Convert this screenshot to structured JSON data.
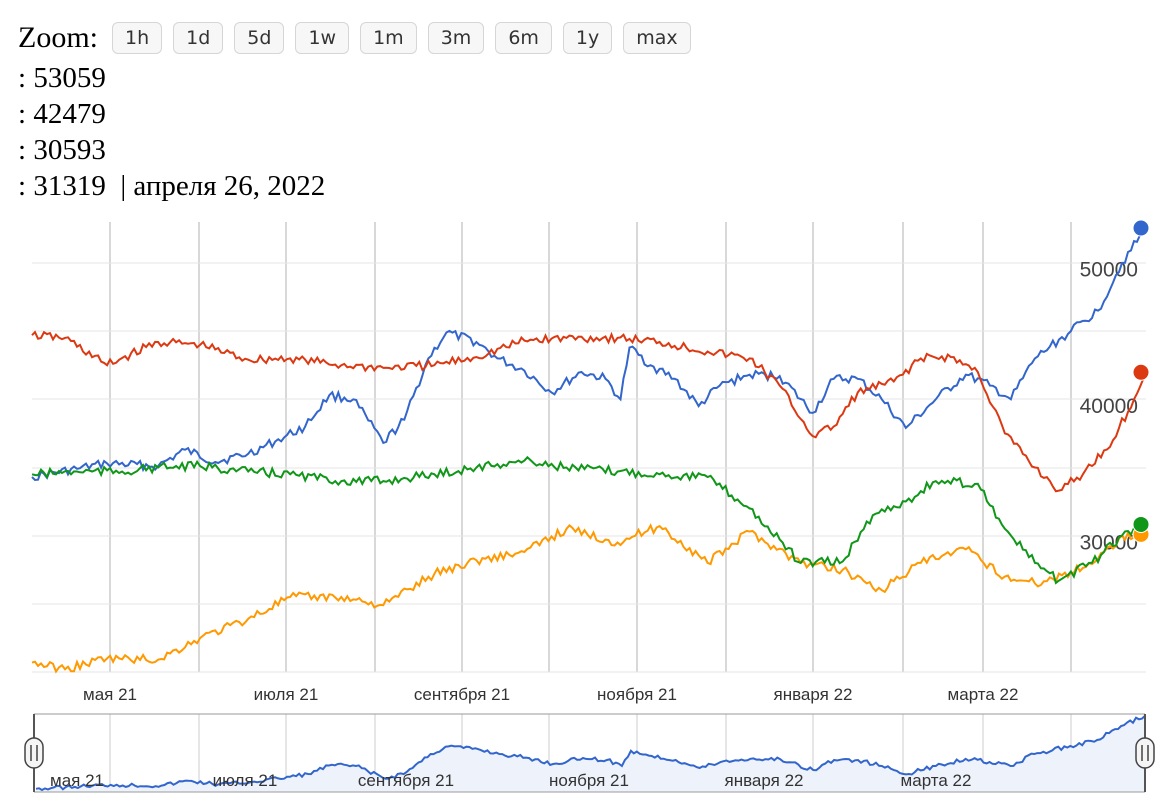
{
  "zoom": {
    "label": "Zoom:",
    "buttons": [
      "1h",
      "1d",
      "5d",
      "1w",
      "1m",
      "3m",
      "6m",
      "1y",
      "max"
    ]
  },
  "readout": {
    "rows": [
      {
        "prefix": ": ",
        "value": "53059",
        "suffix": ""
      },
      {
        "prefix": ": ",
        "value": "42479",
        "suffix": ""
      },
      {
        "prefix": ": ",
        "value": "30593",
        "suffix": ""
      },
      {
        "prefix": ": ",
        "value": "31319",
        "suffix": "  | апреля 26, 2022"
      }
    ]
  },
  "chart_data": {
    "type": "line",
    "x_tick_labels": [
      "мая 21",
      "июля 21",
      "сентября 21",
      "ноября 21",
      "января 22",
      "марта 22"
    ],
    "navigator_tick_labels": [
      "мая 21",
      "июля 21",
      "сентября 21",
      "ноября 21",
      "января 22",
      "марта 22"
    ],
    "y_ticks": [
      30000,
      40000,
      50000
    ],
    "ylim": [
      20500,
      53500
    ],
    "xlim": [
      "2021-04-20",
      "2022-04-26"
    ],
    "grid": true,
    "series": [
      {
        "color": "#3366cc",
        "points": [
          [
            "2021-04-20",
            34800
          ],
          [
            "2021-05-05",
            35400
          ],
          [
            "2021-05-15",
            35800
          ],
          [
            "2021-06-01",
            35600
          ],
          [
            "2021-06-10",
            36800
          ],
          [
            "2021-06-20",
            35900
          ],
          [
            "2021-07-01",
            36500
          ],
          [
            "2021-07-10",
            37400
          ],
          [
            "2021-07-20",
            38500
          ],
          [
            "2021-07-28",
            40800
          ],
          [
            "2021-08-05",
            40500
          ],
          [
            "2021-08-15",
            37300
          ],
          [
            "2021-08-22",
            39000
          ],
          [
            "2021-08-30",
            43500
          ],
          [
            "2021-09-05",
            45400
          ],
          [
            "2021-09-15",
            44700
          ],
          [
            "2021-09-22",
            43500
          ],
          [
            "2021-10-01",
            42600
          ],
          [
            "2021-10-10",
            41000
          ],
          [
            "2021-10-20",
            42500
          ],
          [
            "2021-10-28",
            42000
          ],
          [
            "2021-11-02",
            40500
          ],
          [
            "2021-11-05",
            44300
          ],
          [
            "2021-11-12",
            43000
          ],
          [
            "2021-11-20",
            42000
          ],
          [
            "2021-11-28",
            40000
          ],
          [
            "2021-12-05",
            41500
          ],
          [
            "2021-12-15",
            42300
          ],
          [
            "2021-12-25",
            42200
          ],
          [
            "2022-01-05",
            39500
          ],
          [
            "2022-01-12",
            42000
          ],
          [
            "2022-01-20",
            42000
          ],
          [
            "2022-01-28",
            40500
          ],
          [
            "2022-02-05",
            38400
          ],
          [
            "2022-02-15",
            40500
          ],
          [
            "2022-02-25",
            42300
          ],
          [
            "2022-03-05",
            41500
          ],
          [
            "2022-03-12",
            40500
          ],
          [
            "2022-03-20",
            43500
          ],
          [
            "2022-04-01",
            45500
          ],
          [
            "2022-04-10",
            47000
          ],
          [
            "2022-04-18",
            50500
          ],
          [
            "2022-04-26",
            53059
          ]
        ]
      },
      {
        "color": "#dc3912",
        "points": [
          [
            "2021-04-20",
            45200
          ],
          [
            "2021-05-01",
            45000
          ],
          [
            "2021-05-15",
            43000
          ],
          [
            "2021-06-01",
            44700
          ],
          [
            "2021-06-15",
            44500
          ],
          [
            "2021-07-01",
            43400
          ],
          [
            "2021-07-15",
            43500
          ],
          [
            "2021-08-01",
            43000
          ],
          [
            "2021-08-15",
            42800
          ],
          [
            "2021-09-01",
            43000
          ],
          [
            "2021-09-15",
            43600
          ],
          [
            "2021-10-01",
            44800
          ],
          [
            "2021-10-15",
            45000
          ],
          [
            "2021-11-01",
            45000
          ],
          [
            "2021-11-15",
            44700
          ],
          [
            "2021-12-01",
            44000
          ],
          [
            "2021-12-15",
            43500
          ],
          [
            "2021-12-25",
            41500
          ],
          [
            "2022-01-05",
            37800
          ],
          [
            "2022-01-12",
            38500
          ],
          [
            "2022-01-20",
            41000
          ],
          [
            "2022-02-01",
            41800
          ],
          [
            "2022-02-10",
            43500
          ],
          [
            "2022-02-20",
            43600
          ],
          [
            "2022-03-01",
            42500
          ],
          [
            "2022-03-10",
            38000
          ],
          [
            "2022-03-20",
            35500
          ],
          [
            "2022-03-28",
            33800
          ],
          [
            "2022-04-05",
            35000
          ],
          [
            "2022-04-15",
            37500
          ],
          [
            "2022-04-22",
            40500
          ],
          [
            "2022-04-26",
            42479
          ]
        ]
      },
      {
        "color": "#ff9900",
        "points": [
          [
            "2021-04-20",
            21200
          ],
          [
            "2021-05-01",
            20700
          ],
          [
            "2021-05-15",
            21500
          ],
          [
            "2021-06-01",
            21400
          ],
          [
            "2021-06-15",
            23000
          ],
          [
            "2021-07-01",
            24400
          ],
          [
            "2021-07-15",
            26000
          ],
          [
            "2021-08-01",
            26000
          ],
          [
            "2021-08-15",
            25400
          ],
          [
            "2021-09-01",
            27700
          ],
          [
            "2021-09-15",
            28700
          ],
          [
            "2021-10-01",
            29300
          ],
          [
            "2021-10-15",
            31000
          ],
          [
            "2021-11-01",
            30000
          ],
          [
            "2021-11-15",
            31200
          ],
          [
            "2021-12-01",
            28500
          ],
          [
            "2021-12-15",
            30800
          ],
          [
            "2022-01-01",
            28500
          ],
          [
            "2022-01-15",
            28000
          ],
          [
            "2022-01-28",
            26500
          ],
          [
            "2022-02-10",
            28500
          ],
          [
            "2022-02-25",
            29500
          ],
          [
            "2022-03-10",
            27500
          ],
          [
            "2022-03-20",
            27000
          ],
          [
            "2022-04-01",
            27800
          ],
          [
            "2022-04-10",
            28800
          ],
          [
            "2022-04-18",
            30500
          ],
          [
            "2022-04-26",
            30593
          ]
        ]
      },
      {
        "color": "#109618",
        "points": [
          [
            "2021-04-20",
            35000
          ],
          [
            "2021-05-05",
            35200
          ],
          [
            "2021-05-20",
            35200
          ],
          [
            "2021-06-01",
            35500
          ],
          [
            "2021-06-15",
            35600
          ],
          [
            "2021-07-01",
            35200
          ],
          [
            "2021-07-15",
            35000
          ],
          [
            "2021-08-01",
            34500
          ],
          [
            "2021-08-15",
            34500
          ],
          [
            "2021-09-01",
            35000
          ],
          [
            "2021-09-15",
            35500
          ],
          [
            "2021-10-01",
            36000
          ],
          [
            "2021-10-15",
            35500
          ],
          [
            "2021-11-01",
            35200
          ],
          [
            "2021-11-15",
            35000
          ],
          [
            "2021-12-01",
            34800
          ],
          [
            "2021-12-15",
            32500
          ],
          [
            "2022-01-01",
            28500
          ],
          [
            "2022-01-15",
            28600
          ],
          [
            "2022-01-25",
            32000
          ],
          [
            "2022-02-05",
            33000
          ],
          [
            "2022-02-15",
            34500
          ],
          [
            "2022-03-01",
            34300
          ],
          [
            "2022-03-10",
            31000
          ],
          [
            "2022-03-20",
            28500
          ],
          [
            "2022-03-28",
            27200
          ],
          [
            "2022-04-08",
            28500
          ],
          [
            "2022-04-18",
            30500
          ],
          [
            "2022-04-26",
            31319
          ]
        ]
      }
    ]
  }
}
